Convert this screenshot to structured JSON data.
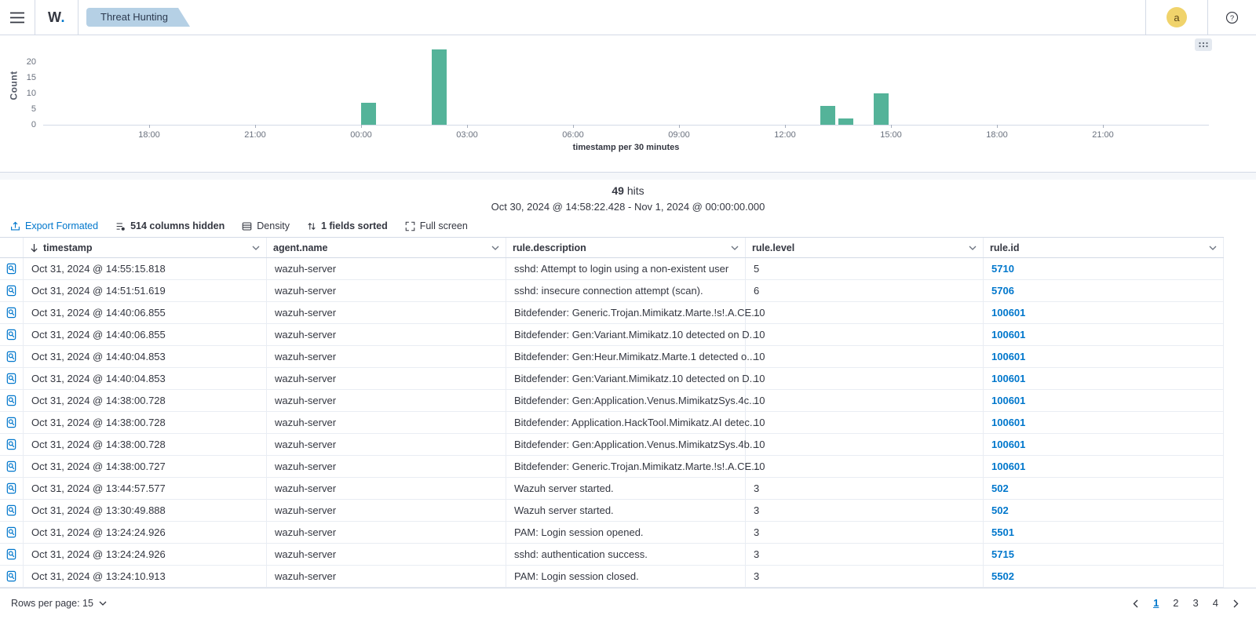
{
  "topbar": {
    "logo_text": "W",
    "logo_dot": ".",
    "tab": {
      "label": "Threat Hunting",
      "bg": "#b5d0e5"
    },
    "avatar": {
      "initial": "a",
      "bg": "#f0d36b"
    },
    "help": "?"
  },
  "colors": {
    "accent_blue": "#0077cc",
    "bar_green": "#54b399",
    "text": "#343741",
    "muted": "#69707d",
    "border": "#d3dae6"
  },
  "icons": {
    "menu-icon": "hamburger",
    "panel-options-icon": "six-dots-grid",
    "export-icon": "upload-tray",
    "columns-icon": "list-lines",
    "density-icon": "table-rows",
    "sort-fields-icon": "up-down-arrows",
    "fullscreen-icon": "expand-corners",
    "sort-desc-icon": "arrow-down",
    "chevron-down-icon": "chevron-down",
    "inspect-document-icon": "document-magnifier",
    "help-icon": "question-circle",
    "prev-page-icon": "chevron-left",
    "next-page-icon": "chevron-right"
  },
  "chart_data": {
    "type": "bar",
    "title": "",
    "xlabel": "timestamp per 30 minutes",
    "ylabel": "Count",
    "bar_color": "#54b399",
    "ylim": [
      0,
      25
    ],
    "y_ticks": [
      0,
      5,
      10,
      15,
      20
    ],
    "x_span_hours": 33,
    "x_start": "Oct 30, 2024 15:00",
    "x_end": "Nov 1, 2024 00:00",
    "bucket_minutes": 30,
    "x_ticks": [
      {
        "label": "18:00",
        "hours": 3
      },
      {
        "label": "21:00",
        "hours": 6
      },
      {
        "label": "00:00",
        "hours": 9
      },
      {
        "label": "03:00",
        "hours": 12
      },
      {
        "label": "06:00",
        "hours": 15
      },
      {
        "label": "09:00",
        "hours": 18
      },
      {
        "label": "12:00",
        "hours": 21
      },
      {
        "label": "15:00",
        "hours": 24
      },
      {
        "label": "18:00",
        "hours": 27
      },
      {
        "label": "21:00",
        "hours": 30
      }
    ],
    "bars": [
      {
        "bucket": "Oct 31 00:00",
        "hours": 9,
        "value": 7
      },
      {
        "bucket": "Oct 31 02:00",
        "hours": 11,
        "value": 24
      },
      {
        "bucket": "Oct 31 13:00",
        "hours": 22,
        "value": 6
      },
      {
        "bucket": "Oct 31 13:30",
        "hours": 22.5,
        "value": 2
      },
      {
        "bucket": "Oct 31 14:30",
        "hours": 23.5,
        "value": 10
      }
    ]
  },
  "hits": {
    "count": "49",
    "label": "hits",
    "range": "Oct 30, 2024 @ 14:58:22.428 - Nov 1, 2024 @ 00:00:00.000"
  },
  "toolbar": {
    "export": "Export Formated",
    "columns": "514 columns hidden",
    "density": "Density",
    "sorted": "1 fields sorted",
    "fullscreen": "Full screen"
  },
  "table": {
    "columns": [
      "timestamp",
      "agent.name",
      "rule.description",
      "rule.level",
      "rule.id"
    ],
    "sorted_column": "timestamp",
    "rows": [
      {
        "timestamp": "Oct 31, 2024 @ 14:55:15.818",
        "agent": "wazuh-server",
        "description": "sshd: Attempt to login using a non-existent user",
        "level": "5",
        "rule_id": "5710"
      },
      {
        "timestamp": "Oct 31, 2024 @ 14:51:51.619",
        "agent": "wazuh-server",
        "description": "sshd: insecure connection attempt (scan).",
        "level": "6",
        "rule_id": "5706"
      },
      {
        "timestamp": "Oct 31, 2024 @ 14:40:06.855",
        "agent": "wazuh-server",
        "description": "Bitdefender: Generic.Trojan.Mimikatz.Marte.!s!.A.CE...",
        "level": "10",
        "rule_id": "100601"
      },
      {
        "timestamp": "Oct 31, 2024 @ 14:40:06.855",
        "agent": "wazuh-server",
        "description": "Bitdefender: Gen:Variant.Mimikatz.10 detected on D...",
        "level": "10",
        "rule_id": "100601"
      },
      {
        "timestamp": "Oct 31, 2024 @ 14:40:04.853",
        "agent": "wazuh-server",
        "description": "Bitdefender: Gen:Heur.Mimikatz.Marte.1 detected o...",
        "level": "10",
        "rule_id": "100601"
      },
      {
        "timestamp": "Oct 31, 2024 @ 14:40:04.853",
        "agent": "wazuh-server",
        "description": "Bitdefender: Gen:Variant.Mimikatz.10 detected on D...",
        "level": "10",
        "rule_id": "100601"
      },
      {
        "timestamp": "Oct 31, 2024 @ 14:38:00.728",
        "agent": "wazuh-server",
        "description": "Bitdefender: Gen:Application.Venus.MimikatzSys.4c...",
        "level": "10",
        "rule_id": "100601"
      },
      {
        "timestamp": "Oct 31, 2024 @ 14:38:00.728",
        "agent": "wazuh-server",
        "description": "Bitdefender: Application.HackTool.Mimikatz.AI detec...",
        "level": "10",
        "rule_id": "100601"
      },
      {
        "timestamp": "Oct 31, 2024 @ 14:38:00.728",
        "agent": "wazuh-server",
        "description": "Bitdefender: Gen:Application.Venus.MimikatzSys.4b...",
        "level": "10",
        "rule_id": "100601"
      },
      {
        "timestamp": "Oct 31, 2024 @ 14:38:00.727",
        "agent": "wazuh-server",
        "description": "Bitdefender: Generic.Trojan.Mimikatz.Marte.!s!.A.CE...",
        "level": "10",
        "rule_id": "100601"
      },
      {
        "timestamp": "Oct 31, 2024 @ 13:44:57.577",
        "agent": "wazuh-server",
        "description": "Wazuh server started.",
        "level": "3",
        "rule_id": "502"
      },
      {
        "timestamp": "Oct 31, 2024 @ 13:30:49.888",
        "agent": "wazuh-server",
        "description": "Wazuh server started.",
        "level": "3",
        "rule_id": "502"
      },
      {
        "timestamp": "Oct 31, 2024 @ 13:24:24.926",
        "agent": "wazuh-server",
        "description": "PAM: Login session opened.",
        "level": "3",
        "rule_id": "5501"
      },
      {
        "timestamp": "Oct 31, 2024 @ 13:24:24.926",
        "agent": "wazuh-server",
        "description": "sshd: authentication success.",
        "level": "3",
        "rule_id": "5715"
      },
      {
        "timestamp": "Oct 31, 2024 @ 13:24:10.913",
        "agent": "wazuh-server",
        "description": "PAM: Login session closed.",
        "level": "3",
        "rule_id": "5502"
      }
    ]
  },
  "footer": {
    "rows_per_page": "Rows per page: 15",
    "pages": [
      "1",
      "2",
      "3",
      "4"
    ],
    "active_page": "1"
  }
}
